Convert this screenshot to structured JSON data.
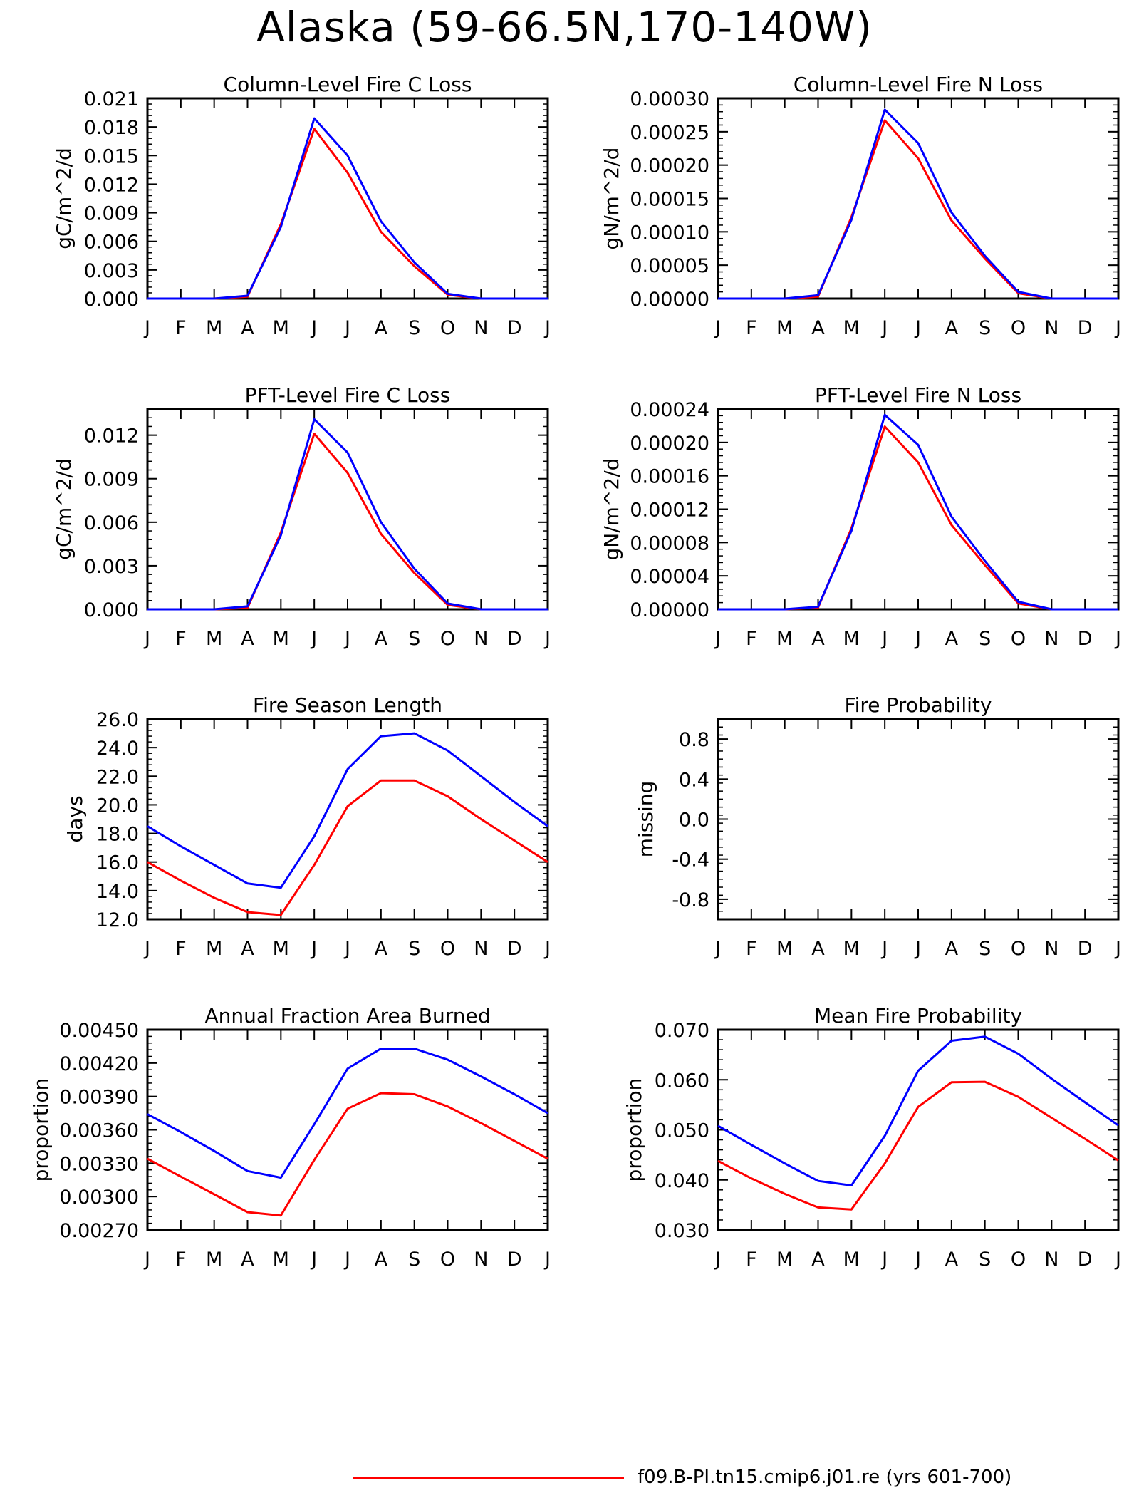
{
  "figure_title": "Alaska (59-66.5N,170-140W)",
  "month_labels": [
    "J",
    "F",
    "M",
    "A",
    "M",
    "J",
    "J",
    "A",
    "S",
    "O",
    "N",
    "D",
    "J"
  ],
  "colors": {
    "case": "#ff0000",
    "control": "#0000ff",
    "axis": "#000000"
  },
  "legend": {
    "case_label": "f09.B-PI.tn15.cmip6.j01.re (yrs 601-700)"
  },
  "chart_data": [
    {
      "id": "col_fire_c",
      "type": "line",
      "title": "Column-Level Fire C Loss",
      "ylabel": "gC/m^2/d",
      "ylim": [
        0.0,
        0.021
      ],
      "yticks": [
        0.0,
        0.003,
        0.006,
        0.009,
        0.012,
        0.015,
        0.018,
        0.021
      ],
      "ytick_labels": [
        "0.000",
        "0.003",
        "0.006",
        "0.009",
        "0.012",
        "0.015",
        "0.018",
        "0.021"
      ],
      "x": [
        "J",
        "F",
        "M",
        "A",
        "M",
        "J",
        "J",
        "A",
        "S",
        "O",
        "N",
        "D",
        "J"
      ],
      "series": [
        {
          "color": "#ff0000",
          "values": [
            0.0,
            0.0,
            0.0,
            0.0002,
            0.0078,
            0.0178,
            0.0132,
            0.007,
            0.0034,
            0.0004,
            0.0,
            0.0,
            0.0
          ]
        },
        {
          "color": "#0000ff",
          "values": [
            0.0,
            0.0,
            0.0,
            0.0003,
            0.0075,
            0.0189,
            0.015,
            0.0081,
            0.0038,
            0.0005,
            0.0,
            0.0,
            0.0
          ]
        }
      ]
    },
    {
      "id": "col_fire_n",
      "type": "line",
      "title": "Column-Level Fire N Loss",
      "ylabel": "gN/m^2/d",
      "ylim": [
        0.0,
        0.0003
      ],
      "yticks": [
        0.0,
        5e-05,
        0.0001,
        0.00015,
        0.0002,
        0.00025,
        0.0003
      ],
      "ytick_labels": [
        "0.00000",
        "0.00005",
        "0.00010",
        "0.00015",
        "0.00020",
        "0.00025",
        "0.00030"
      ],
      "x": [
        "J",
        "F",
        "M",
        "A",
        "M",
        "J",
        "J",
        "A",
        "S",
        "O",
        "N",
        "D",
        "J"
      ],
      "series": [
        {
          "color": "#ff0000",
          "values": [
            0.0,
            0.0,
            0.0,
            3e-06,
            0.000122,
            0.000267,
            0.00021,
            0.000117,
            6e-05,
            8e-06,
            0.0,
            0.0,
            0.0
          ]
        },
        {
          "color": "#0000ff",
          "values": [
            0.0,
            0.0,
            0.0,
            5e-06,
            0.000118,
            0.000283,
            0.000233,
            0.000129,
            6.4e-05,
            1e-05,
            0.0,
            0.0,
            0.0
          ]
        }
      ]
    },
    {
      "id": "pft_fire_c",
      "type": "line",
      "title": "PFT-Level Fire C Loss",
      "ylabel": "gC/m^2/d",
      "ylim": [
        0.0,
        0.0138
      ],
      "yticks": [
        0.0,
        0.003,
        0.006,
        0.009,
        0.012
      ],
      "ytick_labels": [
        "0.000",
        "0.003",
        "0.006",
        "0.009",
        "0.012"
      ],
      "x": [
        "J",
        "F",
        "M",
        "A",
        "M",
        "J",
        "J",
        "A",
        "S",
        "O",
        "N",
        "D",
        "J"
      ],
      "series": [
        {
          "color": "#ff0000",
          "values": [
            0.0,
            0.0,
            0.0,
            0.0001,
            0.0053,
            0.0121,
            0.0094,
            0.0052,
            0.0025,
            0.0003,
            0.0,
            0.0,
            0.0
          ]
        },
        {
          "color": "#0000ff",
          "values": [
            0.0,
            0.0,
            0.0,
            0.0002,
            0.0051,
            0.0131,
            0.0108,
            0.006,
            0.0028,
            0.0004,
            0.0,
            0.0,
            0.0
          ]
        }
      ]
    },
    {
      "id": "pft_fire_n",
      "type": "line",
      "title": "PFT-Level Fire N Loss",
      "ylabel": "gN/m^2/d",
      "ylim": [
        0.0,
        0.00024
      ],
      "yticks": [
        0.0,
        4e-05,
        8e-05,
        0.00012,
        0.00016,
        0.0002,
        0.00024
      ],
      "ytick_labels": [
        "0.00000",
        "0.00004",
        "0.00008",
        "0.00012",
        "0.00016",
        "0.00020",
        "0.00024"
      ],
      "x": [
        "J",
        "F",
        "M",
        "A",
        "M",
        "J",
        "J",
        "A",
        "S",
        "O",
        "N",
        "D",
        "J"
      ],
      "series": [
        {
          "color": "#ff0000",
          "values": [
            0.0,
            0.0,
            0.0,
            2e-06,
            9.7e-05,
            0.000219,
            0.000176,
            0.000101,
            5.3e-05,
            7e-06,
            0.0,
            0.0,
            0.0
          ]
        },
        {
          "color": "#0000ff",
          "values": [
            0.0,
            0.0,
            0.0,
            3e-06,
            9.4e-05,
            0.000233,
            0.000197,
            0.000111,
            5.8e-05,
            9e-06,
            0.0,
            0.0,
            0.0
          ]
        }
      ]
    },
    {
      "id": "fire_season_length",
      "type": "line",
      "title": "Fire Season Length",
      "ylabel": "days",
      "ylim": [
        12.0,
        26.0
      ],
      "yticks": [
        12.0,
        14.0,
        16.0,
        18.0,
        20.0,
        22.0,
        24.0,
        26.0
      ],
      "ytick_labels": [
        "12.0",
        "14.0",
        "16.0",
        "18.0",
        "20.0",
        "22.0",
        "24.0",
        "26.0"
      ],
      "x": [
        "J",
        "F",
        "M",
        "A",
        "M",
        "J",
        "J",
        "A",
        "S",
        "O",
        "N",
        "D",
        "J"
      ],
      "series": [
        {
          "color": "#ff0000",
          "values": [
            16.0,
            14.7,
            13.5,
            12.5,
            12.3,
            15.8,
            19.9,
            21.7,
            21.7,
            20.6,
            19.0,
            17.5,
            16.0
          ]
        },
        {
          "color": "#0000ff",
          "values": [
            18.5,
            17.1,
            15.8,
            14.5,
            14.2,
            17.8,
            22.5,
            24.8,
            25.0,
            23.8,
            22.0,
            20.2,
            18.5
          ]
        }
      ]
    },
    {
      "id": "fire_probability",
      "type": "line",
      "title": "Fire Probability",
      "ylabel": "missing",
      "ylim": [
        -1.0,
        1.0
      ],
      "yticks": [
        -0.8,
        -0.4,
        0.0,
        0.4,
        0.8
      ],
      "ytick_labels": [
        "-0.8",
        "-0.4",
        "0.0",
        "0.4",
        "0.8"
      ],
      "x": [
        "J",
        "F",
        "M",
        "A",
        "M",
        "J",
        "J",
        "A",
        "S",
        "O",
        "N",
        "D",
        "J"
      ],
      "series": []
    },
    {
      "id": "annual_fraction_area_burned",
      "type": "line",
      "title": "Annual Fraction Area Burned",
      "ylabel": "proportion",
      "ylim": [
        0.0027,
        0.0045
      ],
      "yticks": [
        0.0027,
        0.003,
        0.0033,
        0.0036,
        0.0039,
        0.0042,
        0.0045
      ],
      "ytick_labels": [
        "0.00270",
        "0.00300",
        "0.00330",
        "0.00360",
        "0.00390",
        "0.00420",
        "0.00450"
      ],
      "x": [
        "J",
        "F",
        "M",
        "A",
        "M",
        "J",
        "J",
        "A",
        "S",
        "O",
        "N",
        "D",
        "J"
      ],
      "series": [
        {
          "color": "#ff0000",
          "values": [
            0.00334,
            0.00318,
            0.00302,
            0.00286,
            0.00283,
            0.00333,
            0.00379,
            0.00393,
            0.00392,
            0.00381,
            0.00366,
            0.0035,
            0.00334
          ]
        },
        {
          "color": "#0000ff",
          "values": [
            0.00374,
            0.00358,
            0.00341,
            0.00323,
            0.00317,
            0.00365,
            0.00415,
            0.00433,
            0.00433,
            0.00423,
            0.00408,
            0.00392,
            0.00375
          ]
        }
      ]
    },
    {
      "id": "mean_fire_probability",
      "type": "line",
      "title": "Mean Fire Probability",
      "ylabel": "proportion",
      "ylim": [
        0.03,
        0.07
      ],
      "yticks": [
        0.03,
        0.04,
        0.05,
        0.06,
        0.07
      ],
      "ytick_labels": [
        "0.030",
        "0.040",
        "0.050",
        "0.060",
        "0.070"
      ],
      "x": [
        "J",
        "F",
        "M",
        "A",
        "M",
        "J",
        "J",
        "A",
        "S",
        "O",
        "N",
        "D",
        "J"
      ],
      "series": [
        {
          "color": "#ff0000",
          "values": [
            0.0438,
            0.0403,
            0.0372,
            0.0345,
            0.0341,
            0.0433,
            0.0546,
            0.0595,
            0.0596,
            0.0566,
            0.0524,
            0.0482,
            0.0439
          ]
        },
        {
          "color": "#0000ff",
          "values": [
            0.0508,
            0.047,
            0.0433,
            0.0398,
            0.0389,
            0.0488,
            0.0618,
            0.0678,
            0.0686,
            0.0652,
            0.0602,
            0.0555,
            0.0509
          ]
        }
      ]
    }
  ]
}
